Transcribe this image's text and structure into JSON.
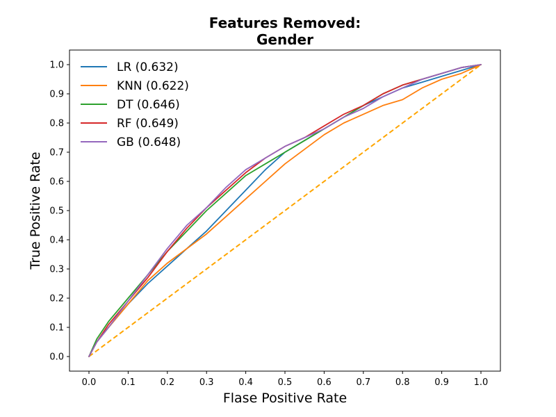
{
  "chart_data": {
    "type": "line",
    "title_lines": [
      "Features Removed:",
      "Gender"
    ],
    "xlabel": "Flase Positive Rate",
    "ylabel": "True Positive Rate",
    "xlim": [
      0.0,
      1.0
    ],
    "ylim": [
      0.0,
      1.0
    ],
    "xticks": [
      "0.0",
      "0.1",
      "0.2",
      "0.3",
      "0.4",
      "0.5",
      "0.6",
      "0.7",
      "0.8",
      "0.9",
      "1.0"
    ],
    "yticks": [
      "0.0",
      "0.1",
      "0.2",
      "0.3",
      "0.4",
      "0.5",
      "0.6",
      "0.7",
      "0.8",
      "0.9",
      "1.0"
    ],
    "grid": false,
    "legend_position": "upper-left",
    "series": [
      {
        "name": "LR (0.632)",
        "color": "#1f77b4",
        "x": [
          0.0,
          0.02,
          0.05,
          0.1,
          0.15,
          0.2,
          0.25,
          0.3,
          0.35,
          0.4,
          0.45,
          0.5,
          0.55,
          0.6,
          0.65,
          0.7,
          0.75,
          0.8,
          0.85,
          0.9,
          0.95,
          1.0
        ],
        "y": [
          0.0,
          0.05,
          0.1,
          0.18,
          0.25,
          0.31,
          0.37,
          0.43,
          0.5,
          0.57,
          0.64,
          0.7,
          0.74,
          0.78,
          0.82,
          0.86,
          0.89,
          0.92,
          0.94,
          0.96,
          0.98,
          1.0
        ]
      },
      {
        "name": "KNN (0.622)",
        "color": "#ff7f0e",
        "x": [
          0.0,
          0.02,
          0.05,
          0.1,
          0.15,
          0.2,
          0.25,
          0.3,
          0.35,
          0.4,
          0.45,
          0.5,
          0.55,
          0.6,
          0.65,
          0.7,
          0.75,
          0.8,
          0.85,
          0.9,
          0.95,
          1.0
        ],
        "y": [
          0.0,
          0.05,
          0.1,
          0.18,
          0.26,
          0.32,
          0.37,
          0.42,
          0.48,
          0.54,
          0.6,
          0.66,
          0.71,
          0.76,
          0.8,
          0.83,
          0.86,
          0.88,
          0.92,
          0.95,
          0.97,
          1.0
        ]
      },
      {
        "name": "DT (0.646)",
        "color": "#2ca02c",
        "x": [
          0.0,
          0.02,
          0.05,
          0.1,
          0.15,
          0.2,
          0.25,
          0.3,
          0.35,
          0.4,
          0.45,
          0.5,
          0.55,
          0.6,
          0.65,
          0.7,
          0.75,
          0.8,
          0.85,
          0.9,
          0.95,
          1.0
        ],
        "y": [
          0.0,
          0.06,
          0.12,
          0.2,
          0.28,
          0.36,
          0.43,
          0.5,
          0.56,
          0.62,
          0.66,
          0.7,
          0.74,
          0.78,
          0.82,
          0.86,
          0.9,
          0.93,
          0.95,
          0.97,
          0.99,
          1.0
        ]
      },
      {
        "name": "RF (0.649)",
        "color": "#d62728",
        "x": [
          0.0,
          0.02,
          0.05,
          0.1,
          0.15,
          0.2,
          0.25,
          0.3,
          0.35,
          0.4,
          0.45,
          0.5,
          0.55,
          0.6,
          0.65,
          0.7,
          0.75,
          0.8,
          0.85,
          0.9,
          0.95,
          1.0
        ],
        "y": [
          0.0,
          0.05,
          0.11,
          0.19,
          0.27,
          0.36,
          0.44,
          0.51,
          0.57,
          0.63,
          0.68,
          0.72,
          0.75,
          0.79,
          0.83,
          0.86,
          0.9,
          0.93,
          0.95,
          0.97,
          0.99,
          1.0
        ]
      },
      {
        "name": "GB (0.648)",
        "color": "#9467bd",
        "x": [
          0.0,
          0.02,
          0.05,
          0.1,
          0.15,
          0.2,
          0.25,
          0.3,
          0.35,
          0.4,
          0.45,
          0.5,
          0.55,
          0.6,
          0.65,
          0.7,
          0.75,
          0.8,
          0.85,
          0.9,
          0.95,
          1.0
        ],
        "y": [
          0.0,
          0.05,
          0.1,
          0.19,
          0.28,
          0.37,
          0.45,
          0.51,
          0.58,
          0.64,
          0.68,
          0.72,
          0.75,
          0.78,
          0.82,
          0.85,
          0.89,
          0.92,
          0.95,
          0.97,
          0.99,
          1.0
        ]
      }
    ],
    "reference_line": {
      "x": [
        0.0,
        1.0
      ],
      "y": [
        0.0,
        1.0
      ],
      "color": "#ffa500",
      "style": "dashed"
    }
  }
}
